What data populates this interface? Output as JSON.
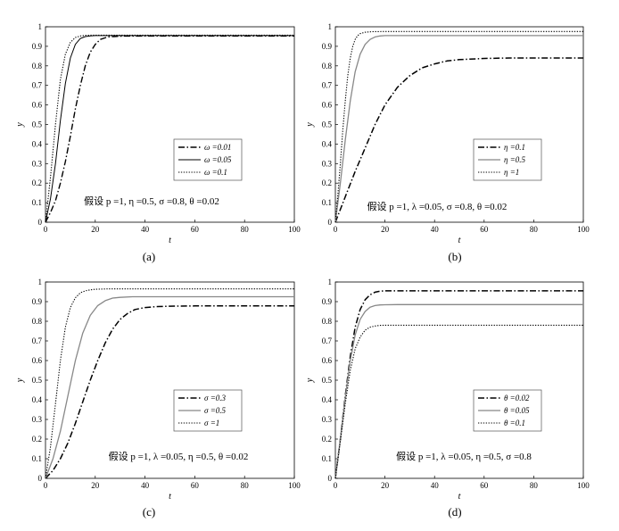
{
  "chart_data": [
    {
      "type": "line",
      "caption": "(a)",
      "xlabel": "t",
      "ylabel": "y",
      "xlim": [
        0,
        100
      ],
      "ylim": [
        0,
        1
      ],
      "xticks": [
        0,
        20,
        40,
        60,
        80,
        100
      ],
      "yticks": [
        0,
        0.1,
        0.2,
        0.3,
        0.4,
        0.5,
        0.6,
        0.7,
        0.8,
        0.9,
        1
      ],
      "ytick_labels": [
        "0",
        "0.1",
        "0.2",
        "0.3",
        "0.4",
        "0.5",
        "0.6",
        "0.7",
        "0.8",
        "0.9",
        "1"
      ],
      "annotation": "假设 p =1, η =0.5, σ =0.8, θ =0.02",
      "legend_position": "center-right",
      "series": [
        {
          "name": "ω =0.01",
          "style": "dashdot",
          "color": "#000000",
          "width": 1.4,
          "x": [
            0,
            2,
            4,
            6,
            8,
            10,
            12,
            14,
            16,
            18,
            20,
            22,
            25,
            30,
            40,
            60,
            80,
            100
          ],
          "y": [
            0.0,
            0.05,
            0.11,
            0.2,
            0.31,
            0.44,
            0.58,
            0.7,
            0.8,
            0.87,
            0.91,
            0.935,
            0.948,
            0.952,
            0.953,
            0.953,
            0.953,
            0.953
          ]
        },
        {
          "name": "ω =0.05",
          "style": "solid",
          "color": "#000000",
          "width": 1.0,
          "x": [
            0,
            2,
            4,
            6,
            8,
            10,
            12,
            14,
            16,
            18,
            20,
            25,
            30,
            40,
            60,
            80,
            100
          ],
          "y": [
            0.0,
            0.12,
            0.3,
            0.52,
            0.71,
            0.84,
            0.91,
            0.94,
            0.95,
            0.953,
            0.955,
            0.955,
            0.955,
            0.955,
            0.955,
            0.955,
            0.955
          ]
        },
        {
          "name": "ω =0.1",
          "style": "dotted",
          "color": "#000000",
          "width": 1.1,
          "x": [
            0,
            2,
            4,
            6,
            8,
            10,
            12,
            14,
            16,
            18,
            20,
            25,
            30,
            40,
            60,
            80,
            100
          ],
          "y": [
            0.0,
            0.23,
            0.5,
            0.73,
            0.86,
            0.92,
            0.945,
            0.953,
            0.956,
            0.957,
            0.957,
            0.957,
            0.957,
            0.957,
            0.957,
            0.957,
            0.957
          ]
        }
      ]
    },
    {
      "type": "line",
      "caption": "(b)",
      "xlabel": "t",
      "ylabel": "y",
      "xlim": [
        0,
        100
      ],
      "ylim": [
        0,
        1
      ],
      "xticks": [
        0,
        20,
        40,
        60,
        80,
        100
      ],
      "yticks": [
        0,
        0.1,
        0.2,
        0.3,
        0.4,
        0.5,
        0.6,
        0.7,
        0.8,
        0.9,
        1
      ],
      "ytick_labels": [
        "0",
        "0.1",
        "0.2",
        "0.3",
        "0.4",
        "0.5",
        "0.6",
        "0.7",
        "0.8",
        "0.9",
        "1"
      ],
      "annotation": "假设 p =1, λ =0.05, σ =0.8, θ =0.02",
      "legend_position": "center-right",
      "series": [
        {
          "name": "η =0.1",
          "style": "dashdot",
          "color": "#000000",
          "width": 1.5,
          "x": [
            0,
            4,
            8,
            12,
            16,
            20,
            25,
            30,
            35,
            40,
            45,
            50,
            60,
            70,
            80,
            90,
            100
          ],
          "y": [
            0.0,
            0.13,
            0.26,
            0.38,
            0.5,
            0.6,
            0.69,
            0.75,
            0.79,
            0.81,
            0.825,
            0.832,
            0.838,
            0.84,
            0.84,
            0.84,
            0.84
          ]
        },
        {
          "name": "η =0.5",
          "style": "solid",
          "color": "#888888",
          "width": 1.3,
          "x": [
            0,
            2,
            4,
            6,
            8,
            10,
            12,
            14,
            16,
            18,
            20,
            25,
            30,
            40,
            60,
            80,
            100
          ],
          "y": [
            0.0,
            0.2,
            0.42,
            0.62,
            0.77,
            0.86,
            0.91,
            0.935,
            0.948,
            0.953,
            0.955,
            0.955,
            0.955,
            0.955,
            0.955,
            0.955,
            0.955
          ]
        },
        {
          "name": "η =1",
          "style": "dotted",
          "color": "#000000",
          "width": 1.1,
          "x": [
            0,
            1,
            2,
            3,
            4,
            5,
            6,
            7,
            8,
            9,
            10,
            12,
            15,
            20,
            30,
            40,
            60,
            80,
            100
          ],
          "y": [
            0.0,
            0.14,
            0.3,
            0.47,
            0.62,
            0.75,
            0.84,
            0.9,
            0.935,
            0.955,
            0.965,
            0.972,
            0.975,
            0.976,
            0.976,
            0.976,
            0.976,
            0.976,
            0.976
          ]
        }
      ]
    },
    {
      "type": "line",
      "caption": "(c)",
      "xlabel": "t",
      "ylabel": "y",
      "xlim": [
        0,
        100
      ],
      "ylim": [
        0,
        1
      ],
      "xticks": [
        0,
        20,
        40,
        60,
        80,
        100
      ],
      "yticks": [
        0,
        0.1,
        0.2,
        0.3,
        0.4,
        0.5,
        0.6,
        0.7,
        0.8,
        0.9,
        1
      ],
      "ytick_labels": [
        "0",
        "0.1",
        "0.2",
        "0.3",
        "0.4",
        "0.5",
        "0.6",
        "0.7",
        "0.8",
        "0.9",
        "1"
      ],
      "annotation": "假设 p =1, λ =0.05, η =0.5, θ =0.02",
      "legend_position": "center-right",
      "series": [
        {
          "name": "σ =0.3",
          "style": "dashdot",
          "color": "#000000",
          "width": 1.5,
          "x": [
            0,
            3,
            6,
            9,
            12,
            15,
            18,
            21,
            24,
            27,
            30,
            33,
            36,
            40,
            45,
            50,
            60,
            80,
            100
          ],
          "y": [
            0.0,
            0.04,
            0.1,
            0.18,
            0.28,
            0.39,
            0.5,
            0.6,
            0.69,
            0.76,
            0.81,
            0.84,
            0.86,
            0.87,
            0.875,
            0.877,
            0.878,
            0.878,
            0.878
          ]
        },
        {
          "name": "σ =0.5",
          "style": "solid",
          "color": "#888888",
          "width": 1.3,
          "x": [
            0,
            3,
            6,
            9,
            12,
            15,
            18,
            21,
            24,
            27,
            30,
            35,
            40,
            60,
            80,
            100
          ],
          "y": [
            0.0,
            0.1,
            0.24,
            0.42,
            0.6,
            0.74,
            0.83,
            0.88,
            0.905,
            0.918,
            0.922,
            0.925,
            0.925,
            0.925,
            0.925,
            0.925
          ]
        },
        {
          "name": "σ =1",
          "style": "dotted",
          "color": "#000000",
          "width": 1.1,
          "x": [
            0,
            2,
            4,
            6,
            8,
            10,
            12,
            14,
            16,
            18,
            20,
            25,
            30,
            40,
            60,
            80,
            100
          ],
          "y": [
            0.0,
            0.16,
            0.38,
            0.6,
            0.77,
            0.87,
            0.92,
            0.945,
            0.955,
            0.96,
            0.963,
            0.965,
            0.965,
            0.965,
            0.965,
            0.965,
            0.965
          ]
        }
      ]
    },
    {
      "type": "line",
      "caption": "(d)",
      "xlabel": "t",
      "ylabel": "y",
      "xlim": [
        0,
        100
      ],
      "ylim": [
        0,
        1
      ],
      "xticks": [
        0,
        20,
        40,
        60,
        80,
        100
      ],
      "yticks": [
        0,
        0.1,
        0.2,
        0.3,
        0.4,
        0.5,
        0.6,
        0.7,
        0.8,
        0.9,
        1
      ],
      "ytick_labels": [
        "0",
        "0.1",
        "0.2",
        "0.3",
        "0.4",
        "0.5",
        "0.6",
        "0.7",
        "0.8",
        "0.9",
        "1"
      ],
      "annotation": "假设 p =1, λ =0.05, η =0.5, σ =0.8",
      "legend_position": "center-right",
      "series": [
        {
          "name": "θ =0.02",
          "style": "dashdot",
          "color": "#000000",
          "width": 1.5,
          "x": [
            0,
            2,
            4,
            6,
            8,
            10,
            12,
            14,
            16,
            18,
            20,
            25,
            30,
            40,
            60,
            80,
            100
          ],
          "y": [
            0.0,
            0.2,
            0.42,
            0.62,
            0.77,
            0.86,
            0.91,
            0.935,
            0.948,
            0.953,
            0.955,
            0.955,
            0.955,
            0.955,
            0.955,
            0.955,
            0.955
          ]
        },
        {
          "name": "θ =0.05",
          "style": "solid",
          "color": "#888888",
          "width": 1.3,
          "x": [
            0,
            2,
            4,
            6,
            8,
            10,
            12,
            14,
            16,
            18,
            20,
            25,
            30,
            40,
            60,
            80,
            100
          ],
          "y": [
            0.0,
            0.2,
            0.41,
            0.6,
            0.73,
            0.81,
            0.85,
            0.872,
            0.88,
            0.883,
            0.884,
            0.885,
            0.885,
            0.885,
            0.885,
            0.885,
            0.885
          ]
        },
        {
          "name": "θ =0.1",
          "style": "dotted",
          "color": "#000000",
          "width": 1.1,
          "x": [
            0,
            2,
            4,
            6,
            8,
            10,
            12,
            14,
            16,
            18,
            20,
            25,
            30,
            40,
            60,
            80,
            100
          ],
          "y": [
            0.0,
            0.19,
            0.38,
            0.55,
            0.66,
            0.72,
            0.755,
            0.77,
            0.776,
            0.779,
            0.78,
            0.78,
            0.78,
            0.78,
            0.78,
            0.78,
            0.78
          ]
        }
      ]
    }
  ]
}
